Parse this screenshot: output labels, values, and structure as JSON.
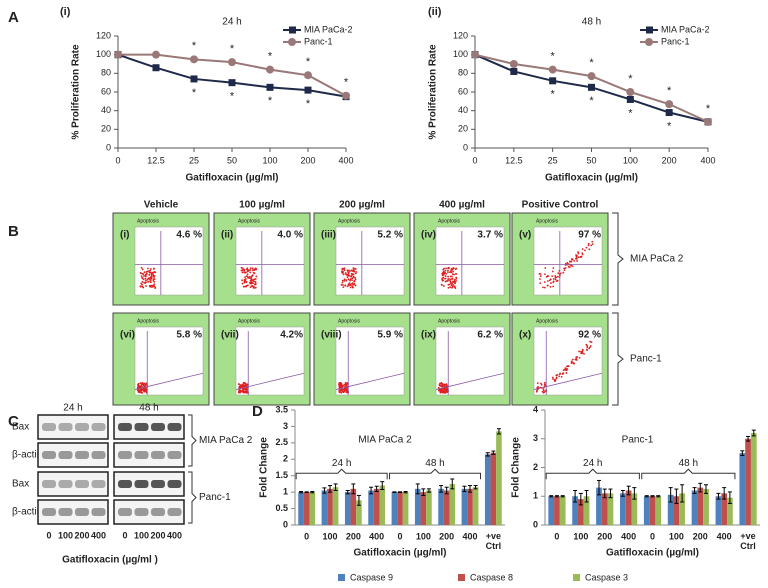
{
  "panel_labels": [
    "A",
    "B",
    "C",
    "D"
  ],
  "chart_data": [
    {
      "type": "line",
      "panel_label": "(i)",
      "title": "24 h",
      "xlabel": "Gatifloxacin (µg/ml)",
      "ylabel": "% Proliferation Rate",
      "categories": [
        "0",
        "12.5",
        "25",
        "50",
        "100",
        "200",
        "400"
      ],
      "ylim": [
        0,
        120
      ],
      "yticks": [
        0,
        20,
        40,
        60,
        80,
        100,
        120
      ],
      "legend": "upper right",
      "series": [
        {
          "name": "MIA PaCa-2",
          "color": "#1f2a4a",
          "marker": "square",
          "values": [
            100,
            86,
            74,
            70,
            65,
            62,
            55
          ],
          "significance": [
            null,
            null,
            "*",
            "*",
            "*",
            "*",
            null
          ]
        },
        {
          "name": "Panc-1",
          "color": "#9a7878",
          "marker": "circle",
          "values": [
            100,
            100,
            95,
            92,
            84,
            78,
            56
          ],
          "significance": [
            null,
            null,
            "*",
            "*",
            "*",
            "*",
            "*"
          ]
        }
      ]
    },
    {
      "type": "line",
      "panel_label": "(ii)",
      "title": "48 h",
      "xlabel": "Gatifloxacin (µg/ml)",
      "ylabel": "% Proliferation Rate",
      "categories": [
        "0",
        "12.5",
        "25",
        "50",
        "100",
        "200",
        "400"
      ],
      "ylim": [
        0,
        120
      ],
      "yticks": [
        0,
        20,
        40,
        60,
        80,
        100,
        120
      ],
      "legend": "upper right",
      "series": [
        {
          "name": "MIA PaCa-2",
          "color": "#1f2a4a",
          "marker": "square",
          "values": [
            100,
            82,
            72,
            65,
            52,
            38,
            28
          ],
          "significance": [
            null,
            null,
            "*",
            "*",
            "*",
            "*",
            null
          ]
        },
        {
          "name": "Panc-1",
          "color": "#9a7878",
          "marker": "circle",
          "values": [
            100,
            90,
            84,
            77,
            60,
            47,
            28
          ],
          "significance": [
            null,
            null,
            "*",
            "*",
            "*",
            "*",
            "*"
          ]
        }
      ]
    },
    {
      "type": "bar",
      "ylabel": "Fold Change",
      "xlabel": "Gatifloxacin (µg/ml)",
      "categories": [
        "0",
        "100",
        "200",
        "400",
        "0",
        "100",
        "200",
        "400",
        "+ve Ctrl"
      ],
      "groups": [
        "24 h",
        "48 h"
      ],
      "series": [
        {
          "name": "Caspase 9",
          "color": "#4f81bd"
        },
        {
          "name": "Caspase 8",
          "color": "#c0504d"
        },
        {
          "name": "Caspase 3",
          "color": "#9bbb59"
        }
      ],
      "subplots": [
        {
          "title": "MIA PaCa 2",
          "ylim": [
            0,
            3.5
          ],
          "yticks": [
            0,
            0.5,
            1,
            1.5,
            2,
            2.5,
            3,
            3.5
          ],
          "values": [
            [
              1,
              1.05,
              1.0,
              1.05,
              1,
              1.1,
              1.1,
              1.1,
              2.15
            ],
            [
              1,
              1.1,
              1.1,
              1.1,
              1,
              1.0,
              1.05,
              1.1,
              2.2
            ],
            [
              1,
              1.15,
              0.75,
              1.2,
              1,
              1.05,
              1.25,
              1.15,
              2.85
            ]
          ],
          "errors": [
            [
              0.02,
              0.08,
              0.05,
              0.1,
              0.01,
              0.15,
              0.1,
              0.08,
              0.05
            ],
            [
              0.01,
              0.1,
              0.15,
              0.08,
              0.01,
              0.1,
              0.1,
              0.1,
              0.05
            ],
            [
              0.02,
              0.1,
              0.15,
              0.12,
              0.02,
              0.05,
              0.15,
              0.05,
              0.08
            ]
          ]
        },
        {
          "title": "Panc-1",
          "ylim": [
            0,
            4
          ],
          "yticks": [
            0,
            1,
            2,
            3,
            4
          ],
          "values": [
            [
              1,
              1.0,
              1.3,
              1.1,
              1,
              1.05,
              1.2,
              1.0,
              2.5
            ],
            [
              1,
              0.9,
              1.1,
              1.2,
              1,
              1.0,
              1.3,
              1.1,
              3.0
            ],
            [
              1,
              1.0,
              1.1,
              1.1,
              1,
              1.1,
              1.25,
              0.95,
              3.2
            ]
          ],
          "errors": [
            [
              0.02,
              0.2,
              0.25,
              0.1,
              0.02,
              0.25,
              0.1,
              0.1,
              0.08
            ],
            [
              0.02,
              0.2,
              0.15,
              0.15,
              0.02,
              0.25,
              0.15,
              0.2,
              0.08
            ],
            [
              0.02,
              0.2,
              0.15,
              0.2,
              0.02,
              0.3,
              0.15,
              0.2,
              0.1
            ]
          ]
        }
      ]
    }
  ],
  "flow": {
    "plot_title": "Apoptosis",
    "columns": [
      "Vehicle",
      "100 µg/ml",
      "200 µg/ml",
      "400 µg/ml",
      "Positive Control"
    ],
    "rows": [
      "MIA PaCa 2",
      "Panc-1"
    ],
    "cells": [
      [
        {
          "id": "(i)",
          "percent": "4.6 %"
        },
        {
          "id": "(ii)",
          "percent": "4.0 %"
        },
        {
          "id": "(iii)",
          "percent": "5.2 %"
        },
        {
          "id": "(iv)",
          "percent": "3.7 %"
        },
        {
          "id": "(v)",
          "percent": "97 %"
        }
      ],
      [
        {
          "id": "(vi)",
          "percent": "5.8 %"
        },
        {
          "id": "(vii)",
          "percent": "4.2%"
        },
        {
          "id": "(viii)",
          "percent": "5.9 %"
        },
        {
          "id": "(ix)",
          "percent": "6.2 %"
        },
        {
          "id": "(x)",
          "percent": "92 %"
        }
      ]
    ]
  },
  "blot": {
    "time_labels": [
      "24 h",
      "48 h"
    ],
    "row_labels": [
      "Bax",
      "β-actin",
      "Bax",
      "β-actin"
    ],
    "cell_lines": [
      "MIA PaCa 2",
      "Panc-1"
    ],
    "doses": [
      "0",
      "100",
      "200",
      "400"
    ],
    "xlabel": "Gatifloxacin (µg/ml )"
  }
}
